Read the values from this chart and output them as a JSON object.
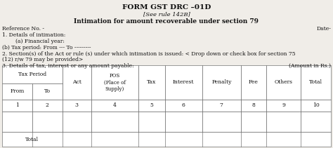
{
  "title": "FORM GST DRC –01D",
  "subtitle": "[See rule 142B]",
  "heading": "Intimation for amount recoverable under section 79",
  "ref_no": "Reference No. -",
  "date": "Date-",
  "line1": "1. Details of intimation:",
  "line2a": "        (a) Financial year:",
  "line2b": "(b) Tax period: From --- To ---------",
  "line3": "2. Section(s) of the Act or rule (s) under which intimation is issued: < Drop down or check box for section 75",
  "line3b": "(12) r/w 79 may be provided>",
  "line4": "3. Details of tax, interest or any amount payable:",
  "amount_label": "(Amount in Rs.)",
  "col_numbers": [
    "1",
    "2",
    "3",
    "4",
    "5",
    "6",
    "7",
    "8",
    "9",
    "10"
  ],
  "total_label": "Total",
  "bg_color": "#f0ede8",
  "border_color": "#555555",
  "text_color": "#111111",
  "font_size": 5.5,
  "title_font_size": 7.5,
  "heading_font_size": 6.5,
  "figwidth": 4.74,
  "figheight": 2.11,
  "dpi": 100
}
